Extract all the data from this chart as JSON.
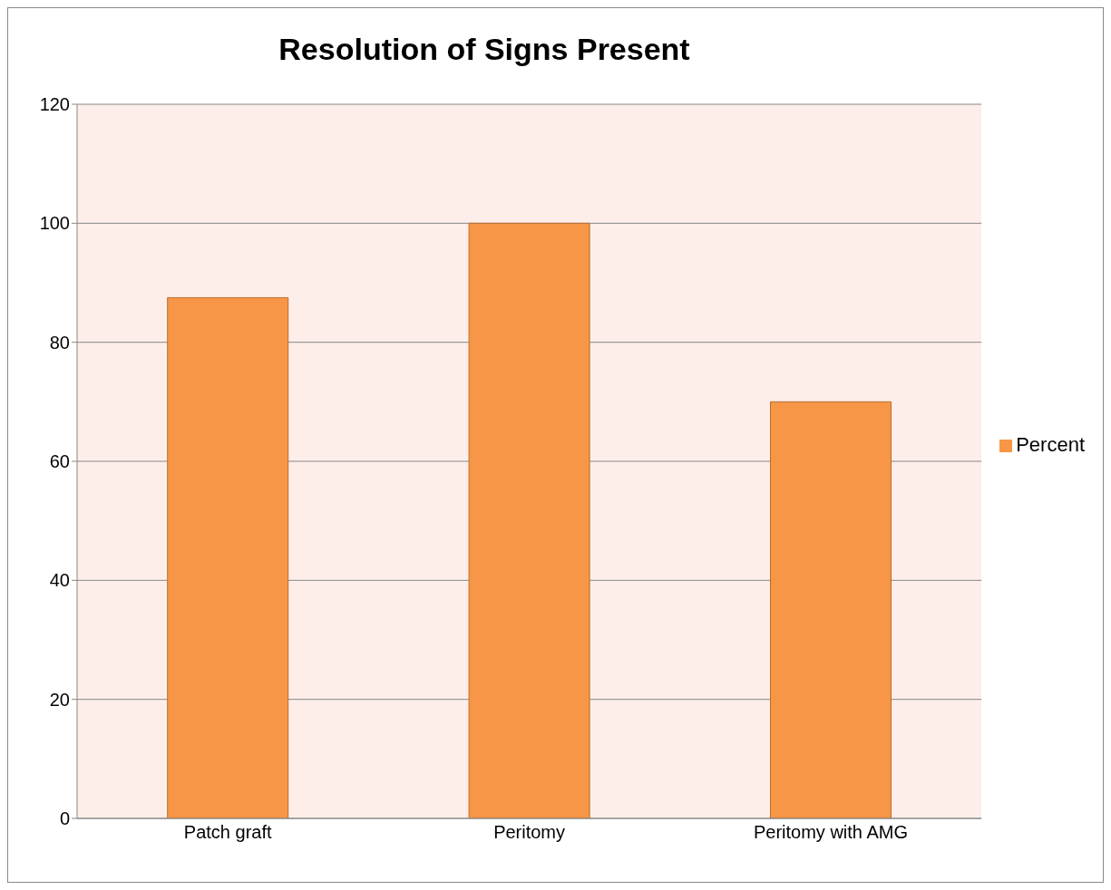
{
  "chart_data": {
    "type": "bar",
    "title": "Resolution of Signs Present",
    "categories": [
      "Patch graft",
      "Peritomy",
      "Peritomy with AMG"
    ],
    "series": [
      {
        "name": "Percent",
        "color": "#f79646",
        "values": [
          87.5,
          100,
          70
        ]
      }
    ],
    "ylim": [
      0,
      120
    ],
    "yticks": [
      0,
      20,
      40,
      60,
      80,
      100,
      120
    ],
    "grid": "y",
    "legend": "right"
  }
}
